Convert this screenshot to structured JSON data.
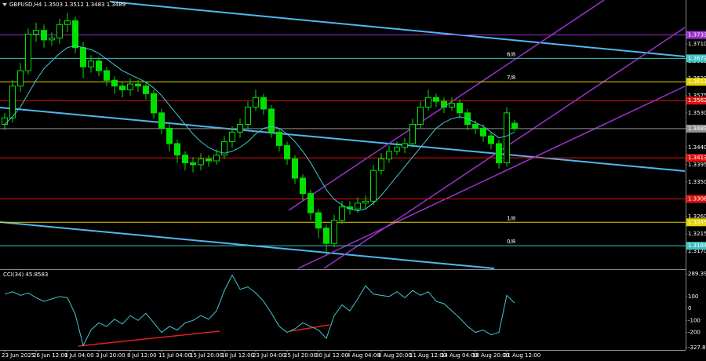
{
  "chart_data": [
    {
      "type": "candlestick",
      "title": "GBPUSD,H4 1.3503 1.3512 1.3483 1.3489",
      "categories": [
        "23 Jun 2025",
        null,
        null,
        null,
        "26 Jun 12:00",
        null,
        null,
        null,
        "1 Jul 04:00",
        null,
        null,
        null,
        "3 Jul 20:00",
        null,
        null,
        null,
        "8 Jul 12:00",
        null,
        null,
        null,
        "11 Jul 04:00",
        null,
        null,
        null,
        "15 Jul 20:00",
        null,
        null,
        null,
        "18 Jul 12:00",
        null,
        null,
        null,
        "23 Jul 04:00",
        null,
        null,
        null,
        "25 Jul 20:00",
        null,
        null,
        null,
        "30 Jul 12:00",
        null,
        null,
        null,
        "4 Aug 04:00",
        null,
        null,
        null,
        "6 Aug 20:00",
        null,
        null,
        null,
        "11 Aug 12:00",
        null,
        null,
        null,
        "14 Aug 04:00",
        null,
        null,
        null,
        "18 Aug 20:00",
        null,
        null,
        null,
        "21 Aug 12:00",
        null
      ],
      "open": [
        1.35,
        1.3517,
        1.36,
        1.364,
        1.3735,
        1.3745,
        1.372,
        1.3725,
        1.376,
        1.377,
        1.37,
        1.365,
        1.3665,
        1.364,
        1.3615,
        1.36,
        1.359,
        1.3605,
        1.36,
        1.358,
        1.353,
        1.349,
        1.345,
        1.342,
        1.34,
        1.3395,
        1.341,
        1.3405,
        1.342,
        1.3455,
        1.348,
        1.35,
        1.3545,
        1.357,
        1.354,
        1.348,
        1.3445,
        1.341,
        1.336,
        1.332,
        1.327,
        1.323,
        1.319,
        1.325,
        1.3285,
        1.328,
        1.3295,
        1.33,
        1.338,
        1.341,
        1.343,
        1.344,
        1.345,
        1.35,
        1.3545,
        1.357,
        1.356,
        1.3545,
        1.3555,
        1.353,
        1.35,
        1.349,
        1.347,
        1.345,
        1.34,
        1.3503
      ],
      "high": [
        1.353,
        1.3615,
        1.366,
        1.375,
        1.3765,
        1.376,
        1.374,
        1.3775,
        1.379,
        1.378,
        1.3715,
        1.368,
        1.3675,
        1.365,
        1.3625,
        1.361,
        1.362,
        1.3615,
        1.361,
        1.359,
        1.354,
        1.35,
        1.346,
        1.343,
        1.3415,
        1.3425,
        1.342,
        1.3435,
        1.347,
        1.3495,
        1.3515,
        1.356,
        1.359,
        1.358,
        1.355,
        1.349,
        1.3455,
        1.342,
        1.337,
        1.333,
        1.328,
        1.324,
        1.3265,
        1.33,
        1.33,
        1.331,
        1.3315,
        1.3395,
        1.3425,
        1.3445,
        1.3455,
        1.3465,
        1.3515,
        1.356,
        1.359,
        1.358,
        1.357,
        1.357,
        1.3565,
        1.354,
        1.351,
        1.35,
        1.348,
        1.346,
        1.3545,
        1.3512
      ],
      "low": [
        1.3485,
        1.3505,
        1.3585,
        1.363,
        1.3715,
        1.37,
        1.3705,
        1.371,
        1.374,
        1.3685,
        1.362,
        1.3635,
        1.3625,
        1.36,
        1.358,
        1.357,
        1.3575,
        1.3585,
        1.3565,
        1.3515,
        1.3475,
        1.343,
        1.34,
        1.338,
        1.3375,
        1.338,
        1.339,
        1.3395,
        1.341,
        1.344,
        1.3465,
        1.349,
        1.3535,
        1.3525,
        1.3465,
        1.343,
        1.3395,
        1.3345,
        1.33,
        1.325,
        1.3205,
        1.316,
        1.318,
        1.324,
        1.3265,
        1.327,
        1.328,
        1.329,
        1.337,
        1.34,
        1.342,
        1.3425,
        1.344,
        1.349,
        1.3535,
        1.3545,
        1.353,
        1.3535,
        1.3515,
        1.3485,
        1.3475,
        1.3455,
        1.3435,
        1.3385,
        1.339,
        1.3483
      ],
      "close": [
        1.3517,
        1.36,
        1.364,
        1.3735,
        1.3745,
        1.372,
        1.3725,
        1.376,
        1.377,
        1.37,
        1.365,
        1.3665,
        1.364,
        1.3615,
        1.36,
        1.359,
        1.3605,
        1.36,
        1.358,
        1.353,
        1.349,
        1.345,
        1.342,
        1.34,
        1.3395,
        1.341,
        1.3405,
        1.342,
        1.3455,
        1.348,
        1.35,
        1.3545,
        1.357,
        1.354,
        1.348,
        1.3445,
        1.341,
        1.336,
        1.332,
        1.327,
        1.323,
        1.319,
        1.325,
        1.3285,
        1.328,
        1.3295,
        1.33,
        1.338,
        1.341,
        1.343,
        1.344,
        1.345,
        1.35,
        1.3545,
        1.357,
        1.356,
        1.3545,
        1.3555,
        1.353,
        1.35,
        1.349,
        1.347,
        1.345,
        1.34,
        1.353,
        1.3489
      ],
      "color": "#00e000",
      "ma": {
        "color": "#40c8d0",
        "values": [
          1.35,
          1.352,
          1.3545,
          1.358,
          1.3615,
          1.3645,
          1.3665,
          1.3685,
          1.37,
          1.3705,
          1.37,
          1.3695,
          1.3685,
          1.367,
          1.3655,
          1.364,
          1.363,
          1.362,
          1.361,
          1.3595,
          1.3575,
          1.355,
          1.3525,
          1.35,
          1.3475,
          1.3455,
          1.344,
          1.343,
          1.3425,
          1.343,
          1.344,
          1.3455,
          1.3475,
          1.349,
          1.3495,
          1.349,
          1.3475,
          1.3455,
          1.343,
          1.34,
          1.3365,
          1.333,
          1.3305,
          1.329,
          1.328,
          1.3275,
          1.328,
          1.3295,
          1.3315,
          1.334,
          1.3365,
          1.339,
          1.3415,
          1.344,
          1.3465,
          1.349,
          1.3505,
          1.3515,
          1.352,
          1.3515,
          1.3505,
          1.3495,
          1.348,
          1.3465,
          1.347,
          1.348
        ]
      },
      "ylim": [
        1.3125,
        1.3824
      ],
      "yticks": [
        {
          "value": 1.371,
          "label": "1.3710"
        },
        1.3665,
        {
          "value": 1.362,
          "label": "1.3620"
        },
        1.3575,
        {
          "value": 1.353,
          "label": "1.3530"
        },
        {
          "value": 1.344,
          "label": "1.3440"
        },
        1.3395,
        {
          "value": 1.335,
          "label": "1.3350"
        },
        {
          "value": 1.326,
          "label": "1.3260"
        },
        1.3215,
        {
          "value": 1.317,
          "label": "1.3170"
        }
      ],
      "levels": [
        {
          "value": 1.3733,
          "color": "#9932cc"
        },
        {
          "value": 1.3672,
          "color": "#40c0c0",
          "tag": "6/8"
        },
        {
          "value": 1.3611,
          "color": "#e6d200",
          "tag": "7/8"
        },
        {
          "value": 1.3562,
          "color": "#e01010"
        },
        {
          "value": 1.3489,
          "color": "#909090"
        },
        {
          "value": 1.3413,
          "color": "#e01010"
        },
        {
          "value": 1.3306,
          "color": "#e01010"
        },
        {
          "value": 1.3245,
          "color": "#e6d200",
          "tag": "1/8"
        },
        {
          "value": 1.3184,
          "color": "#40c0c0",
          "tag": "0/8"
        }
      ]
    },
    {
      "type": "line",
      "title": "CCI(34) 45.8583",
      "color": "#40c8d0",
      "values": [
        120,
        140,
        110,
        130,
        90,
        60,
        80,
        100,
        90,
        -50,
        -310,
        -180,
        -120,
        -150,
        -90,
        -130,
        -60,
        -100,
        -40,
        -120,
        -200,
        -150,
        -180,
        -120,
        -100,
        -60,
        -90,
        -20,
        150,
        280,
        160,
        180,
        130,
        60,
        -40,
        -150,
        -200,
        -170,
        -120,
        -150,
        -180,
        -250,
        -60,
        30,
        -20,
        80,
        190,
        120,
        110,
        100,
        140,
        90,
        150,
        110,
        140,
        60,
        40,
        -20,
        -80,
        -150,
        -200,
        -180,
        -220,
        -200,
        110,
        45.8583
      ],
      "ylim": [
        -327.8324,
        289.3969
      ],
      "yticks": [
        289.3969,
        100,
        0,
        -100,
        -200,
        -327.8324
      ]
    }
  ]
}
